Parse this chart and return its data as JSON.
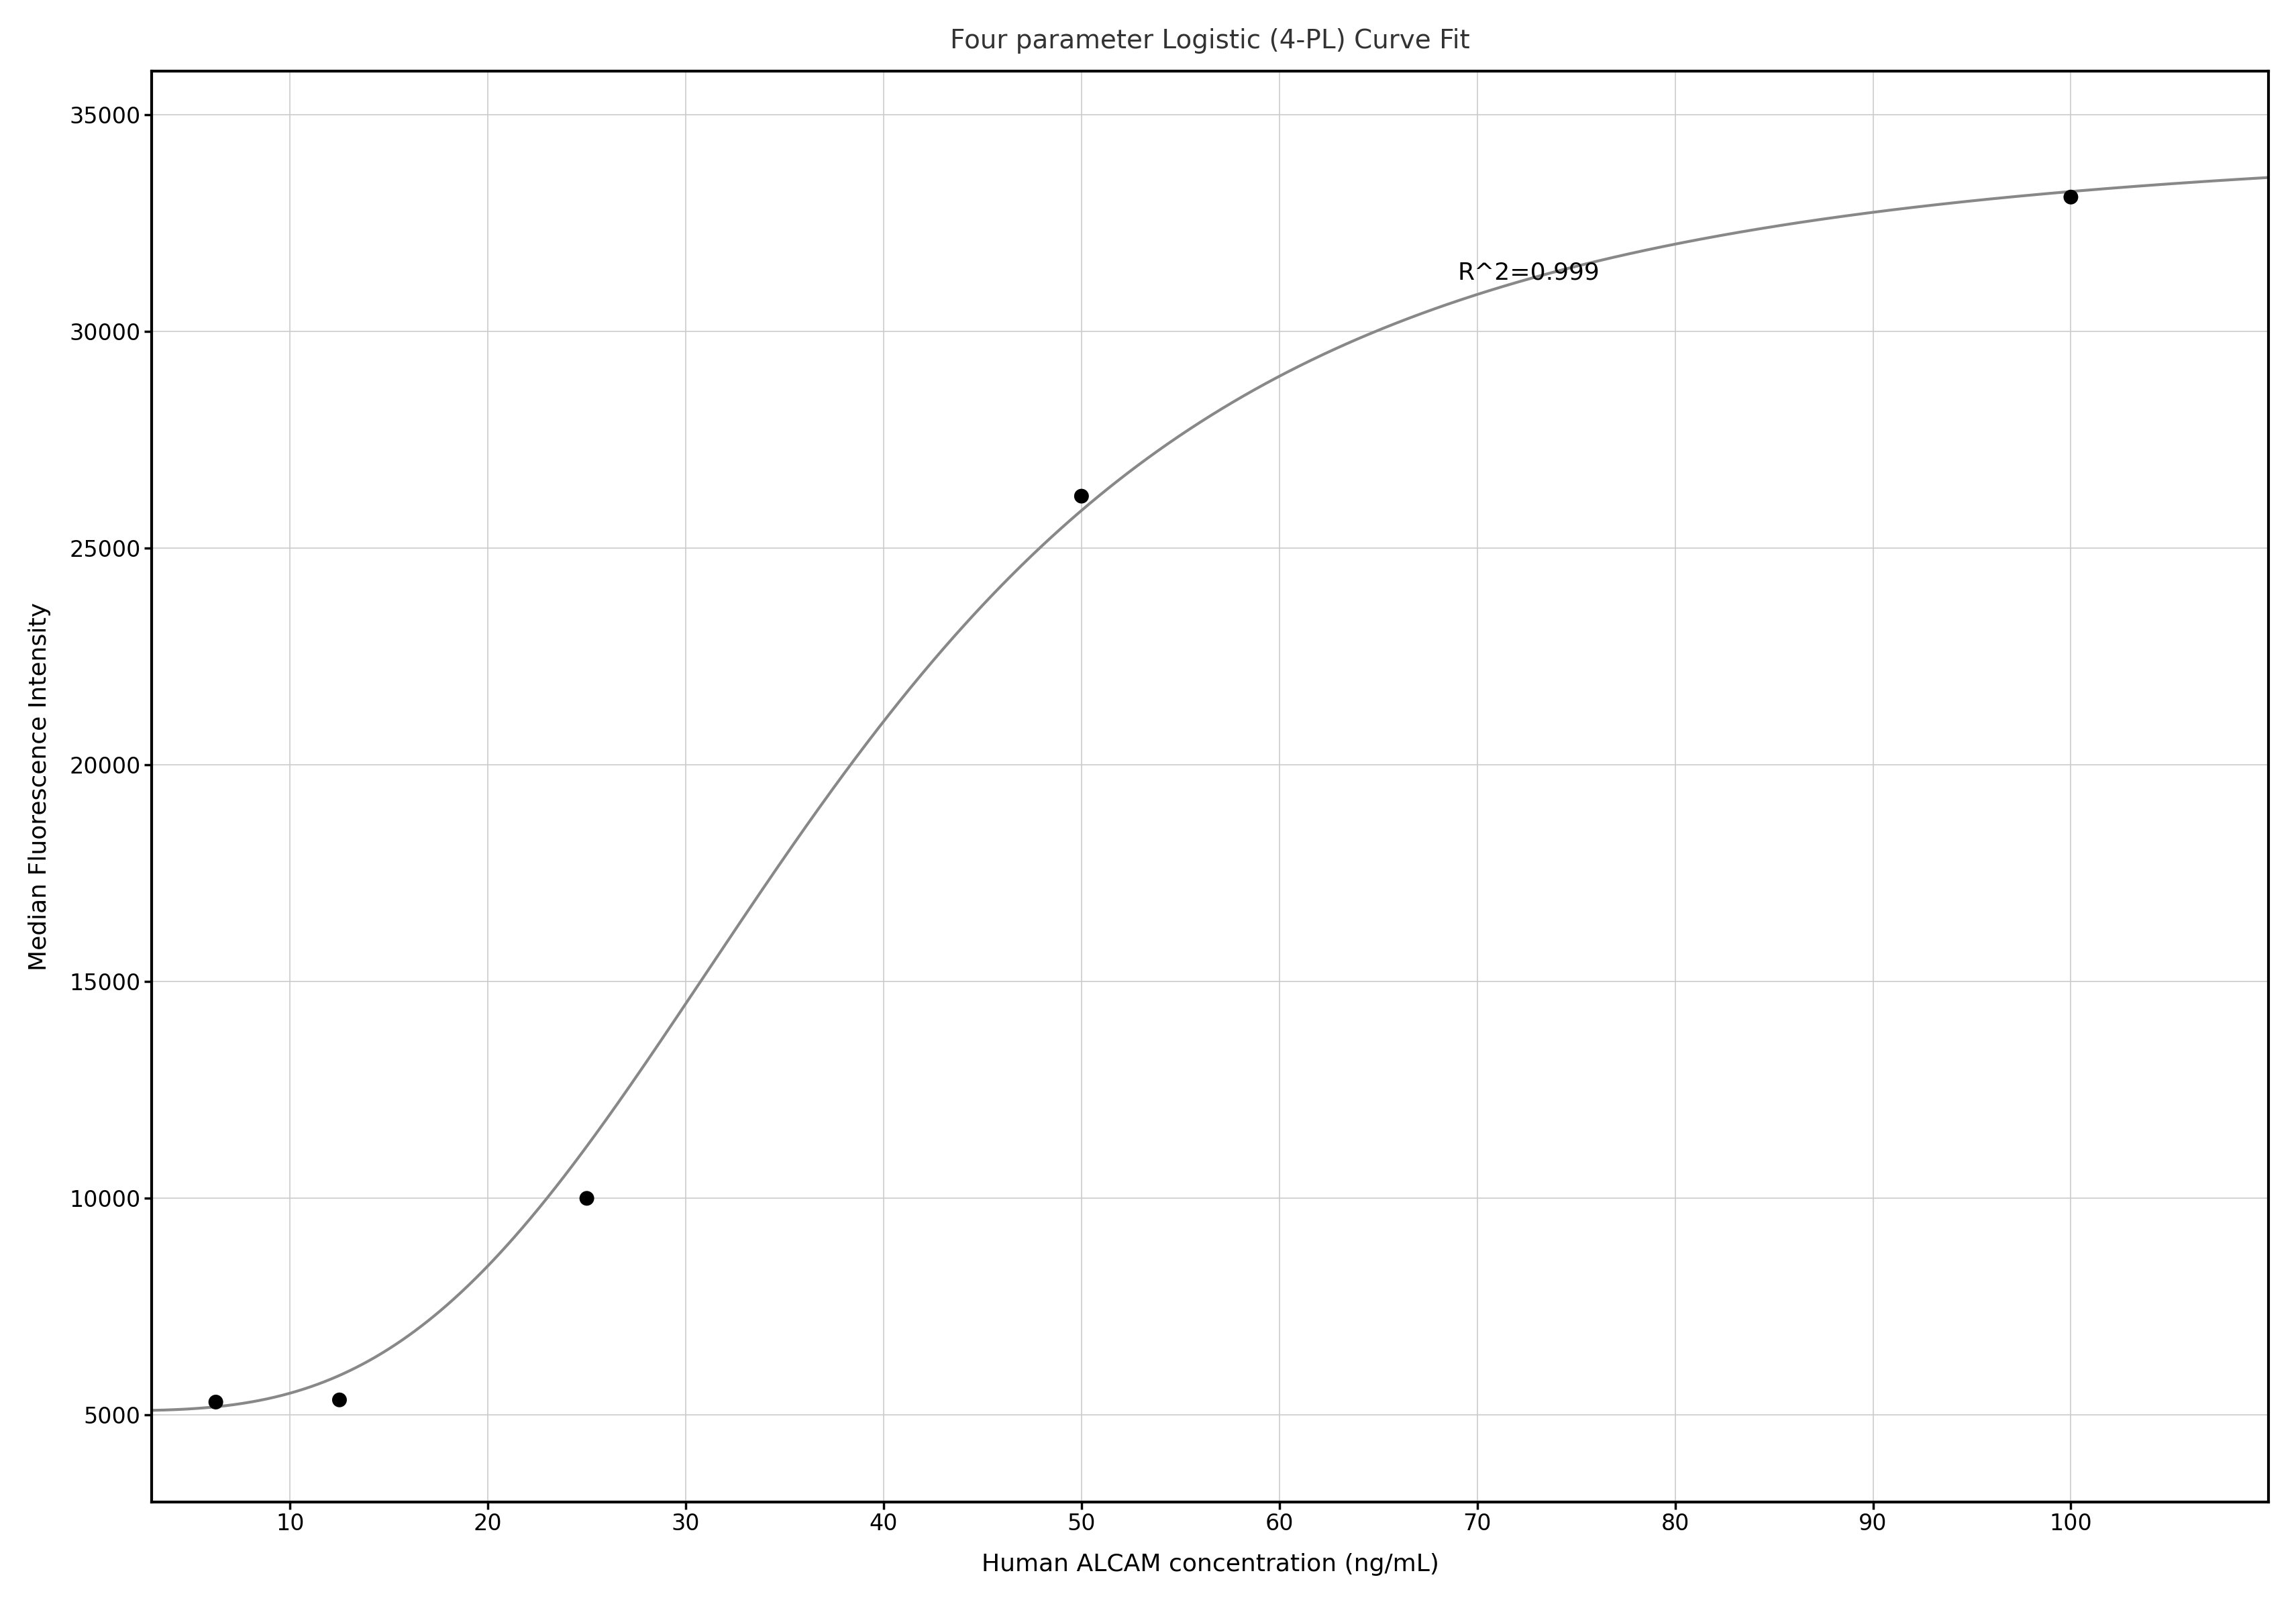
{
  "title": "Four parameter Logistic (4-PL) Curve Fit",
  "xlabel": "Human ALCAM concentration (ng/mL)",
  "ylabel": "Median Fluorescence Intensity",
  "data_x": [
    6.25,
    12.5,
    25,
    50,
    100
  ],
  "data_y": [
    5300,
    5350,
    10000,
    26200,
    33100
  ],
  "r_squared": "R^2=0.999",
  "r_squared_x": 69,
  "r_squared_y": 31200,
  "xlim": [
    3,
    110
  ],
  "ylim": [
    3000,
    36000
  ],
  "yticks": [
    5000,
    10000,
    15000,
    20000,
    25000,
    30000,
    35000
  ],
  "xticks": [
    10,
    20,
    30,
    40,
    50,
    60,
    70,
    80,
    90,
    100
  ],
  "curve_color": "#888888",
  "dot_color": "#000000",
  "grid_color": "#cccccc",
  "background_color": "#ffffff",
  "title_fontsize": 28,
  "label_fontsize": 26,
  "tick_fontsize": 24,
  "annotation_fontsize": 26,
  "4pl_A": 5100,
  "4pl_B": 3.2,
  "4pl_C": 38.0,
  "4pl_D": 34500
}
